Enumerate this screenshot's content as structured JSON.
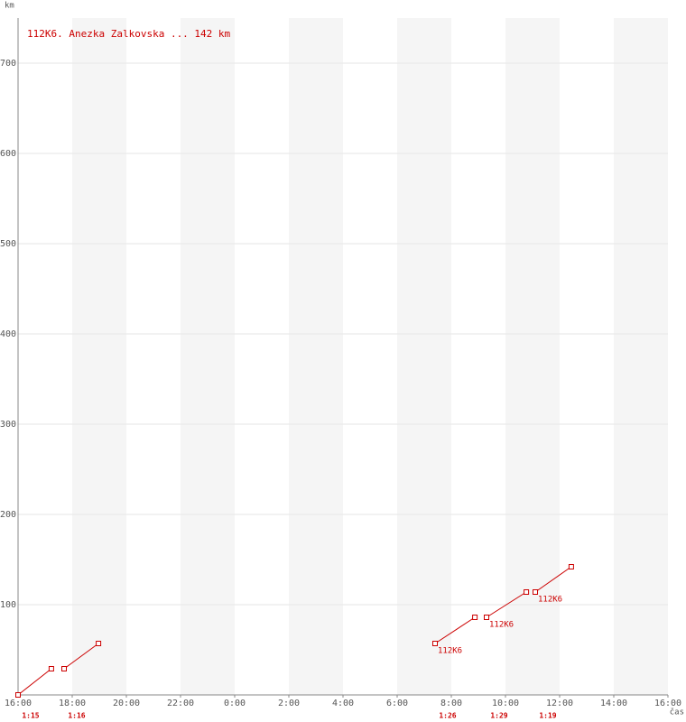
{
  "chart_data": {
    "type": "segments",
    "title": "112K6. Anezka Zalkovska ... 142 km",
    "y_label": "km",
    "x_label": "čas",
    "color": "#cc0000",
    "xlim": [
      0,
      24
    ],
    "ylim": [
      0,
      750
    ],
    "xticks": [
      {
        "value": 0,
        "label": "16:00"
      },
      {
        "value": 2,
        "label": "18:00"
      },
      {
        "value": 4,
        "label": "20:00"
      },
      {
        "value": 6,
        "label": "22:00"
      },
      {
        "value": 8,
        "label": "0:00"
      },
      {
        "value": 10,
        "label": "2:00"
      },
      {
        "value": 12,
        "label": "4:00"
      },
      {
        "value": 14,
        "label": "6:00"
      },
      {
        "value": 16,
        "label": "8:00"
      },
      {
        "value": 18,
        "label": "10:00"
      },
      {
        "value": 20,
        "label": "12:00"
      },
      {
        "value": 22,
        "label": "14:00"
      },
      {
        "value": 24,
        "label": "16:00"
      }
    ],
    "yticks": [
      100,
      200,
      300,
      400,
      500,
      600,
      700
    ],
    "grid": true,
    "segments": [
      {
        "x": [
          0,
          1.23
        ],
        "values": [
          0,
          29
        ],
        "duration": "1:15"
      },
      {
        "x": [
          1.7,
          2.97
        ],
        "values": [
          29,
          57
        ],
        "duration": "1:16"
      },
      {
        "x": [
          15.4,
          16.87
        ],
        "values": [
          57,
          86
        ],
        "duration": "1:26",
        "label": "112K6"
      },
      {
        "x": [
          17.3,
          18.77
        ],
        "values": [
          86,
          114
        ],
        "duration": "1:29",
        "label": "112K6"
      },
      {
        "x": [
          19.1,
          20.43
        ],
        "values": [
          114,
          142
        ],
        "duration": "1:19",
        "label": "112K6"
      }
    ]
  }
}
